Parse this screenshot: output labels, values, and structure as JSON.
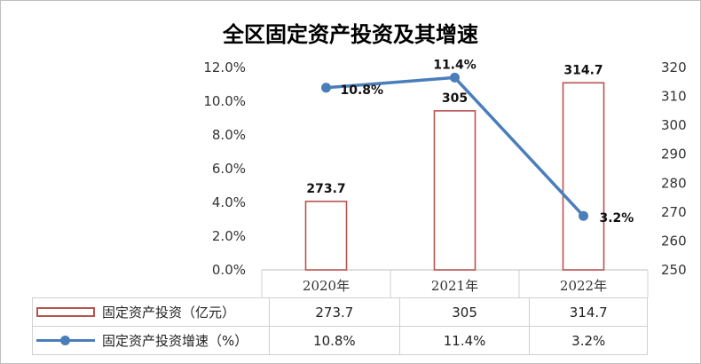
{
  "title": "全区固定资产投资及其增速",
  "colors": {
    "bar_border": "#b85450",
    "line": "#4a7ebb",
    "grid": "#d9d9d9"
  },
  "chart_data": {
    "type": "bar+line",
    "title": "全区固定资产投资及其增速",
    "categories": [
      "2020年",
      "2021年",
      "2022年"
    ],
    "series": [
      {
        "name": "固定资产投资（亿元）",
        "type": "bar",
        "axis": "right",
        "values": [
          273.7,
          305,
          314.7
        ]
      },
      {
        "name": "固定资产投资增速（%）",
        "type": "line",
        "axis": "left",
        "values": [
          10.8,
          11.4,
          3.2
        ]
      }
    ],
    "left_axis": {
      "min": 0,
      "max": 12,
      "step": 2,
      "tick_labels": [
        "0.0%",
        "2.0%",
        "4.0%",
        "6.0%",
        "8.0%",
        "10.0%",
        "12.0%"
      ]
    },
    "right_axis": {
      "min": 250,
      "max": 320,
      "step": 10,
      "tick_labels": [
        "250",
        "260",
        "270",
        "280",
        "290",
        "300",
        "310",
        "320"
      ]
    },
    "bar_labels": [
      "273.7",
      "305",
      "314.7"
    ],
    "line_labels": [
      "10.8%",
      "11.4%",
      "3.2%"
    ],
    "grid": false,
    "legend": "data-table"
  },
  "table": {
    "rows": [
      {
        "key": "固定资产投资（亿元）",
        "cells": [
          "273.7",
          "305",
          "314.7"
        ]
      },
      {
        "key": "固定资产投资增速（%）",
        "cells": [
          "10.8%",
          "11.4%",
          "3.2%"
        ]
      }
    ]
  }
}
